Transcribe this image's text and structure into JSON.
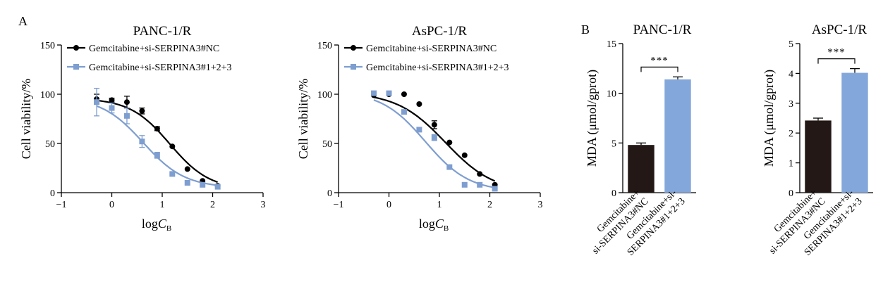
{
  "panel_labels": [
    "A",
    "B"
  ],
  "chart_data": [
    {
      "type": "line",
      "title": "PANC-1/R",
      "xlabel": "logC",
      "xlabel_sub": "B",
      "ylabel": "Cell viability/%",
      "xlim": [
        -1,
        3
      ],
      "ylim": [
        0,
        150
      ],
      "xticks": [
        "−1",
        "0",
        "1",
        "2",
        "3"
      ],
      "yticks": [
        "0",
        "50",
        "100",
        "150"
      ],
      "legend_position": "top-left",
      "series": [
        {
          "name": "Gemcitabine+si-SERPINA3#NC",
          "color": "#000000",
          "marker": "circle",
          "x": [
            -0.3,
            0,
            0.3,
            0.6,
            0.9,
            1.2,
            1.5,
            1.8,
            2.1
          ],
          "y": [
            95,
            94,
            92,
            83,
            65,
            47,
            24,
            12,
            7
          ],
          "err": [
            5,
            2,
            6,
            3,
            2,
            1,
            1,
            1,
            1
          ],
          "fit": {
            "top": 96,
            "bottom": 3,
            "log_ic50": 1.15,
            "hill": 1.1
          }
        },
        {
          "name": "Gemcitabine+si-SERPINA3#1+2+3",
          "color": "#7E9ED0",
          "marker": "square",
          "x": [
            -0.3,
            0,
            0.3,
            0.6,
            0.9,
            1.2,
            1.5,
            1.8,
            2.1
          ],
          "y": [
            92,
            86,
            78,
            52,
            38,
            19,
            10,
            8,
            6
          ],
          "err": [
            14,
            5,
            8,
            6,
            3,
            1,
            1,
            1,
            1
          ],
          "fit": {
            "top": 97,
            "bottom": 5,
            "log_ic50": 0.62,
            "hill": 1.05
          }
        }
      ]
    },
    {
      "type": "line",
      "title": "AsPC-1/R",
      "xlabel": "logC",
      "xlabel_sub": "B",
      "ylabel": "Cell viability/%",
      "xlim": [
        -1,
        3
      ],
      "ylim": [
        0,
        150
      ],
      "xticks": [
        "−1",
        "0",
        "1",
        "2",
        "3"
      ],
      "yticks": [
        "0",
        "50",
        "100",
        "150"
      ],
      "legend_position": "top-left",
      "series": [
        {
          "name": "Gemcitabine+si-SERPINA3#NC",
          "color": "#000000",
          "marker": "circle",
          "x": [
            -0.3,
            0,
            0.3,
            0.6,
            0.9,
            1.2,
            1.5,
            1.8,
            2.1
          ],
          "y": [
            99,
            100,
            100,
            90,
            69,
            51,
            38,
            19,
            8
          ],
          "err": [
            1,
            1,
            1,
            1,
            4,
            1,
            1,
            1,
            1
          ],
          "fit": {
            "top": 102,
            "bottom": 0,
            "log_ic50": 1.12,
            "hill": 0.9
          }
        },
        {
          "name": "Gemcitabine+si-SERPINA3#1+2+3",
          "color": "#7E9ED0",
          "marker": "square",
          "x": [
            -0.3,
            0,
            0.3,
            0.6,
            0.9,
            1.2,
            1.5,
            1.8,
            2.1
          ],
          "y": [
            101,
            101,
            82,
            64,
            56,
            26,
            8,
            8,
            4
          ],
          "err": [
            1,
            1,
            1,
            1,
            3,
            1,
            1,
            1,
            1
          ],
          "fit": {
            "top": 103,
            "bottom": 1,
            "log_ic50": 0.72,
            "hill": 1.0
          }
        }
      ]
    },
    {
      "type": "bar",
      "title": "PANC-1/R",
      "ylabel": "MDA (μmol/gprot)",
      "ylim": [
        0,
        15
      ],
      "yticks": [
        "0",
        "5",
        "10",
        "15"
      ],
      "categories": [
        [
          "Gemcitabine+",
          "si-SERPINA3#NC"
        ],
        [
          "Gemcitabine+si-",
          "SERPINA3#1+2+3"
        ]
      ],
      "values": [
        4.8,
        11.4
      ],
      "err": [
        0.2,
        0.25
      ],
      "colors": [
        "#231815",
        "#84A7DB"
      ],
      "significance": "***"
    },
    {
      "type": "bar",
      "title": "AsPC-1/R",
      "ylabel": "MDA (μmol/gprot)",
      "ylim": [
        0,
        5
      ],
      "yticks": [
        "0",
        "1",
        "2",
        "3",
        "4",
        "5"
      ],
      "categories": [
        [
          "Gemcitabine+",
          "si-SERPINA3#NC"
        ],
        [
          "Gemcitabine+si-",
          "SERPINA3#1+2+3"
        ]
      ],
      "values": [
        2.42,
        4.02
      ],
      "err": [
        0.08,
        0.14
      ],
      "colors": [
        "#231815",
        "#84A7DB"
      ],
      "significance": "***"
    }
  ]
}
